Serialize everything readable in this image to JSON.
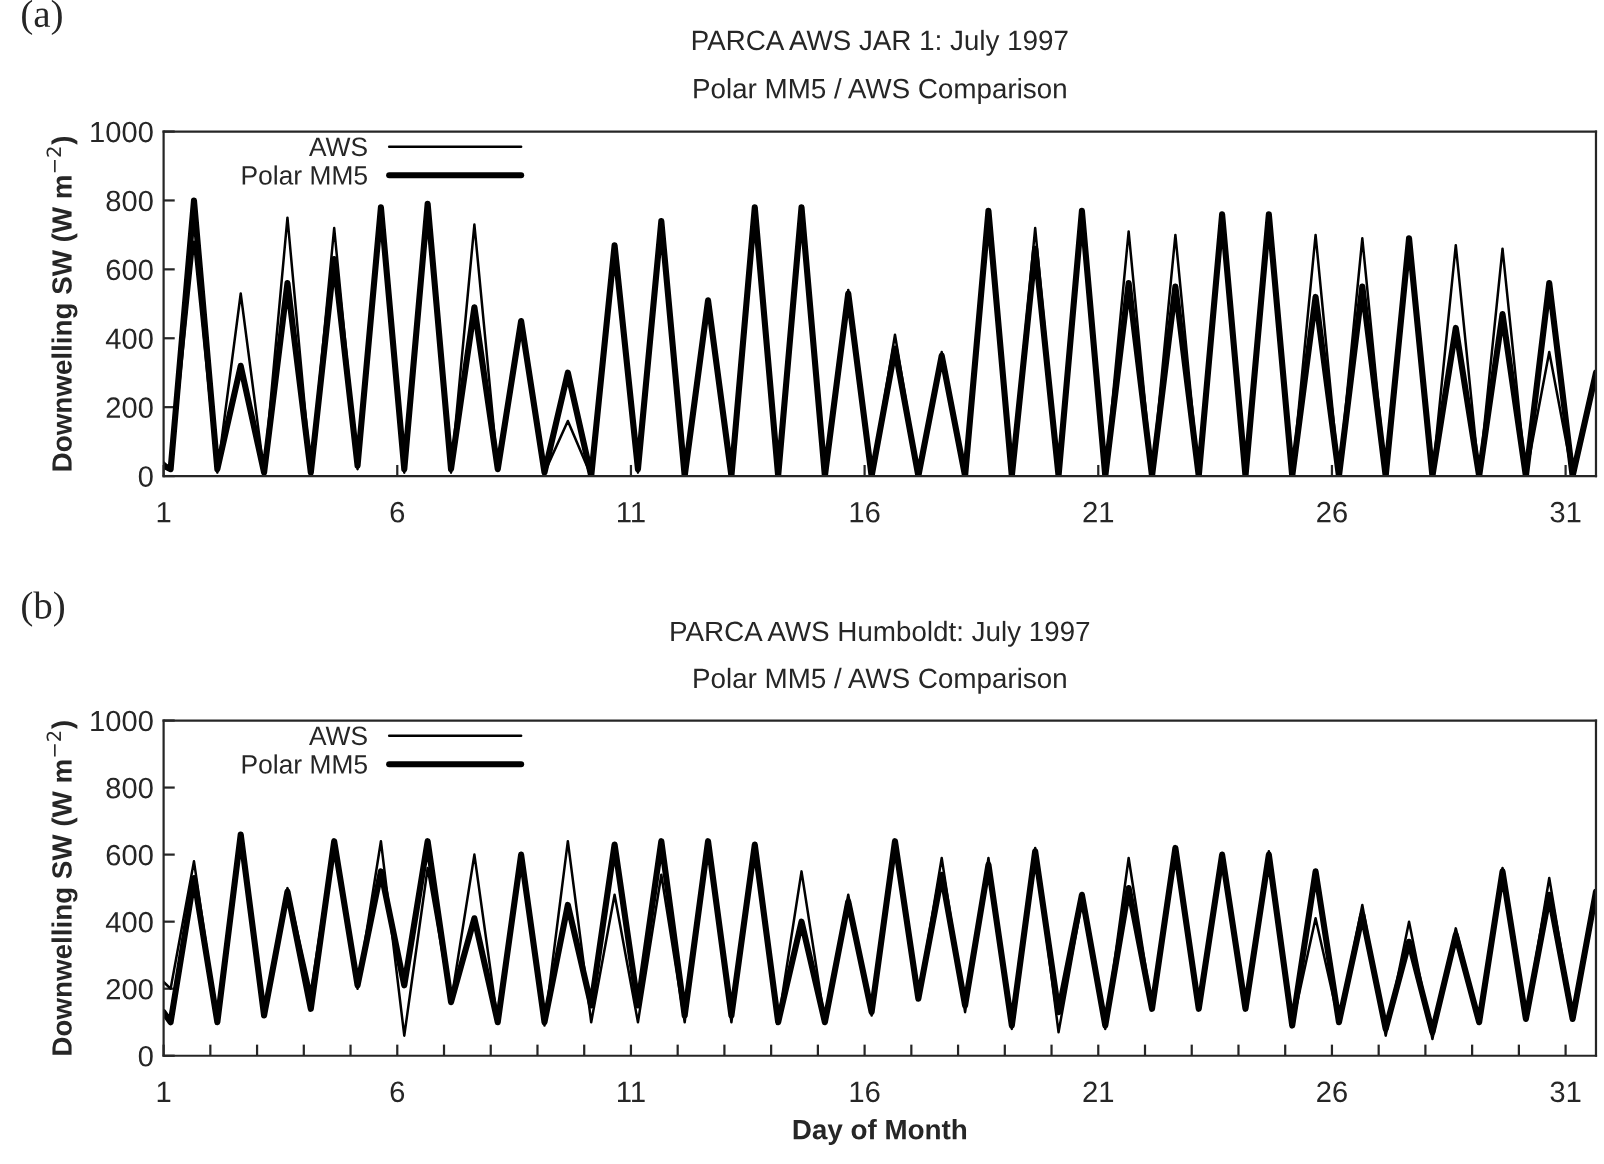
{
  "chart_data": [
    {
      "type": "line",
      "title": "PARCA AWS JAR 1: July 1997",
      "subtitle": "Polar MM5 / AWS Comparison",
      "ylabel": "Downwelling SW (W m$^{−2}$)",
      "annotations": [
        "(a)"
      ],
      "x": [
        1,
        1.15,
        1.65,
        2.15,
        2.65,
        3.15,
        3.65,
        4.15,
        4.65,
        5.15,
        5.65,
        6.15,
        6.65,
        7.15,
        7.65,
        8.15,
        8.65,
        9.15,
        9.65,
        10.15,
        10.65,
        11.15,
        11.65,
        12.15,
        12.65,
        13.15,
        13.65,
        14.15,
        14.65,
        15.15,
        15.65,
        16.15,
        16.65,
        17.15,
        17.65,
        18.15,
        18.65,
        19.15,
        19.65,
        20.15,
        20.65,
        21.15,
        21.65,
        22.15,
        22.65,
        23.15,
        23.65,
        24.15,
        24.65,
        25.15,
        25.65,
        26.15,
        26.65,
        27.15,
        27.65,
        28.15,
        28.65,
        29.15,
        29.65,
        30.15,
        30.65,
        31.15,
        31.65
      ],
      "series": [
        {
          "name": "AWS",
          "color": "#000000",
          "values": [
            40,
            20,
            680,
            10,
            530,
            10,
            750,
            10,
            720,
            20,
            780,
            10,
            790,
            10,
            730,
            20,
            450,
            10,
            160,
            0,
            650,
            10,
            730,
            0,
            510,
            0,
            780,
            0,
            780,
            0,
            540,
            0,
            410,
            0,
            360,
            0,
            770,
            0,
            720,
            0,
            770,
            0,
            710,
            0,
            700,
            0,
            760,
            0,
            750,
            0,
            700,
            0,
            690,
            0,
            690,
            0,
            670,
            0,
            660,
            0,
            360,
            0,
            300
          ]
        },
        {
          "name": "Polar MM5",
          "color": "#000000",
          "values": [
            30,
            20,
            800,
            20,
            320,
            10,
            560,
            10,
            630,
            30,
            780,
            20,
            790,
            20,
            490,
            20,
            450,
            10,
            300,
            0,
            670,
            20,
            740,
            0,
            510,
            0,
            780,
            0,
            780,
            0,
            530,
            0,
            370,
            0,
            350,
            0,
            770,
            0,
            660,
            0,
            770,
            0,
            560,
            0,
            550,
            0,
            760,
            0,
            760,
            0,
            520,
            0,
            550,
            0,
            690,
            0,
            430,
            0,
            470,
            0,
            560,
            0,
            300
          ]
        }
      ],
      "xlim": [
        1,
        31.65
      ],
      "xticks": [
        1,
        6,
        11,
        16,
        21,
        26,
        31
      ],
      "ylim": [
        0,
        1000
      ],
      "yticks": [
        0,
        200,
        400,
        600,
        800,
        1000
      ],
      "legend": "top left",
      "grid": false,
      "line_style": "solid",
      "marker": "none"
    },
    {
      "type": "line",
      "title": "PARCA AWS Humboldt: July 1997",
      "subtitle": "Polar MM5 / AWS Comparison",
      "xlabel": "Day of Month",
      "ylabel": "Downwelling SW (W m$^{−2}$)",
      "annotations": [
        "(b)"
      ],
      "x": [
        1,
        1.15,
        1.65,
        2.15,
        2.65,
        3.15,
        3.65,
        4.15,
        4.65,
        5.15,
        5.65,
        6.15,
        6.65,
        7.15,
        7.65,
        8.15,
        8.65,
        9.15,
        9.65,
        10.15,
        10.65,
        11.15,
        11.65,
        12.15,
        12.65,
        13.15,
        13.65,
        14.15,
        14.65,
        15.15,
        15.65,
        16.15,
        16.65,
        17.15,
        17.65,
        18.15,
        18.65,
        19.15,
        19.65,
        20.15,
        20.65,
        21.15,
        21.65,
        22.15,
        22.65,
        23.15,
        23.65,
        24.15,
        24.65,
        25.15,
        25.65,
        26.15,
        26.65,
        27.15,
        27.65,
        28.15,
        28.65,
        29.15,
        29.65,
        30.15,
        30.65,
        31.15,
        31.65
      ],
      "series": [
        {
          "name": "AWS",
          "color": "#000000",
          "values": [
            220,
            200,
            580,
            100,
            640,
            120,
            500,
            190,
            640,
            200,
            640,
            60,
            560,
            160,
            600,
            100,
            590,
            90,
            640,
            100,
            480,
            100,
            540,
            100,
            640,
            100,
            620,
            100,
            550,
            100,
            480,
            120,
            640,
            170,
            590,
            130,
            590,
            80,
            620,
            70,
            460,
            80,
            590,
            140,
            620,
            140,
            600,
            140,
            610,
            90,
            410,
            100,
            450,
            60,
            400,
            50,
            380,
            100,
            560,
            110,
            530,
            110,
            490
          ]
        },
        {
          "name": "Polar MM5",
          "color": "#000000",
          "values": [
            130,
            100,
            530,
            100,
            660,
            120,
            490,
            140,
            640,
            210,
            550,
            210,
            640,
            160,
            410,
            100,
            600,
            100,
            450,
            150,
            630,
            150,
            640,
            120,
            640,
            120,
            630,
            100,
            400,
            100,
            460,
            130,
            640,
            170,
            540,
            150,
            570,
            90,
            610,
            130,
            480,
            90,
            500,
            140,
            620,
            140,
            600,
            140,
            600,
            90,
            550,
            100,
            420,
            80,
            340,
            70,
            360,
            100,
            550,
            110,
            480,
            110,
            490
          ]
        }
      ],
      "xlim": [
        1,
        31.65
      ],
      "xticks": [
        1,
        {
          "value": 2,
          "label": null
        },
        {
          "value": 3,
          "label": null
        },
        {
          "value": 4,
          "label": null
        },
        {
          "value": 5,
          "label": null
        },
        6,
        {
          "value": 7,
          "label": null
        },
        {
          "value": 8,
          "label": null
        },
        {
          "value": 9,
          "label": null
        },
        {
          "value": 10,
          "label": null
        },
        11,
        {
          "value": 12,
          "label": null
        },
        {
          "value": 13,
          "label": null
        },
        {
          "value": 14,
          "label": null
        },
        {
          "value": 15,
          "label": null
        },
        16,
        {
          "value": 17,
          "label": null
        },
        {
          "value": 18,
          "label": null
        },
        {
          "value": 19,
          "label": null
        },
        {
          "value": 20,
          "label": null
        },
        21,
        {
          "value": 22,
          "label": null
        },
        {
          "value": 23,
          "label": null
        },
        {
          "value": 24,
          "label": null
        },
        {
          "value": 25,
          "label": null
        },
        26,
        {
          "value": 27,
          "label": null
        },
        {
          "value": 28,
          "label": null
        },
        {
          "value": 29,
          "label": null
        },
        {
          "value": 30,
          "label": null
        },
        31
      ],
      "ylim": [
        0,
        1000
      ],
      "yticks": [
        0,
        200,
        400,
        600,
        800,
        1000
      ],
      "legend": "top left",
      "grid": false,
      "line_style": "solid",
      "marker": "none"
    }
  ]
}
